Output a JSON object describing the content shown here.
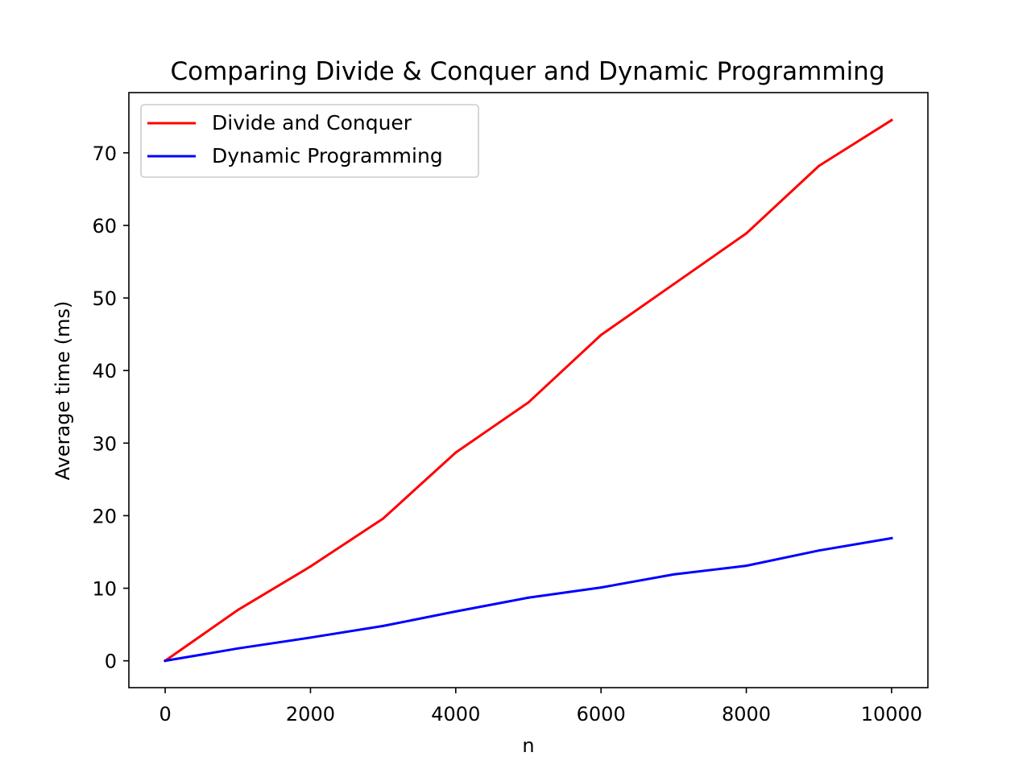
{
  "chart_data": {
    "type": "line",
    "title": "Comparing Divide & Conquer and Dynamic Programming",
    "xlabel": "n",
    "ylabel": "Average time (ms)",
    "xlim": [
      -500,
      10500
    ],
    "ylim": [
      -3.7,
      78.3
    ],
    "xticks": [
      0,
      2000,
      4000,
      6000,
      8000,
      10000
    ],
    "yticks": [
      0,
      10,
      20,
      30,
      40,
      50,
      60,
      70
    ],
    "x": [
      0,
      1000,
      2000,
      3000,
      4000,
      5000,
      6000,
      7000,
      8000,
      9000,
      10000
    ],
    "series": [
      {
        "name": "Divide and Conquer",
        "color": "#ff0000",
        "values": [
          0,
          7.0,
          13.0,
          19.6,
          28.7,
          35.6,
          44.9,
          51.9,
          58.9,
          68.2,
          74.5
        ]
      },
      {
        "name": "Dynamic Programming",
        "color": "#0000ff",
        "values": [
          0,
          1.7,
          3.2,
          4.8,
          6.8,
          8.7,
          10.1,
          11.9,
          13.1,
          15.2,
          16.9
        ]
      }
    ],
    "legend_position": "top-left",
    "grid": false
  }
}
